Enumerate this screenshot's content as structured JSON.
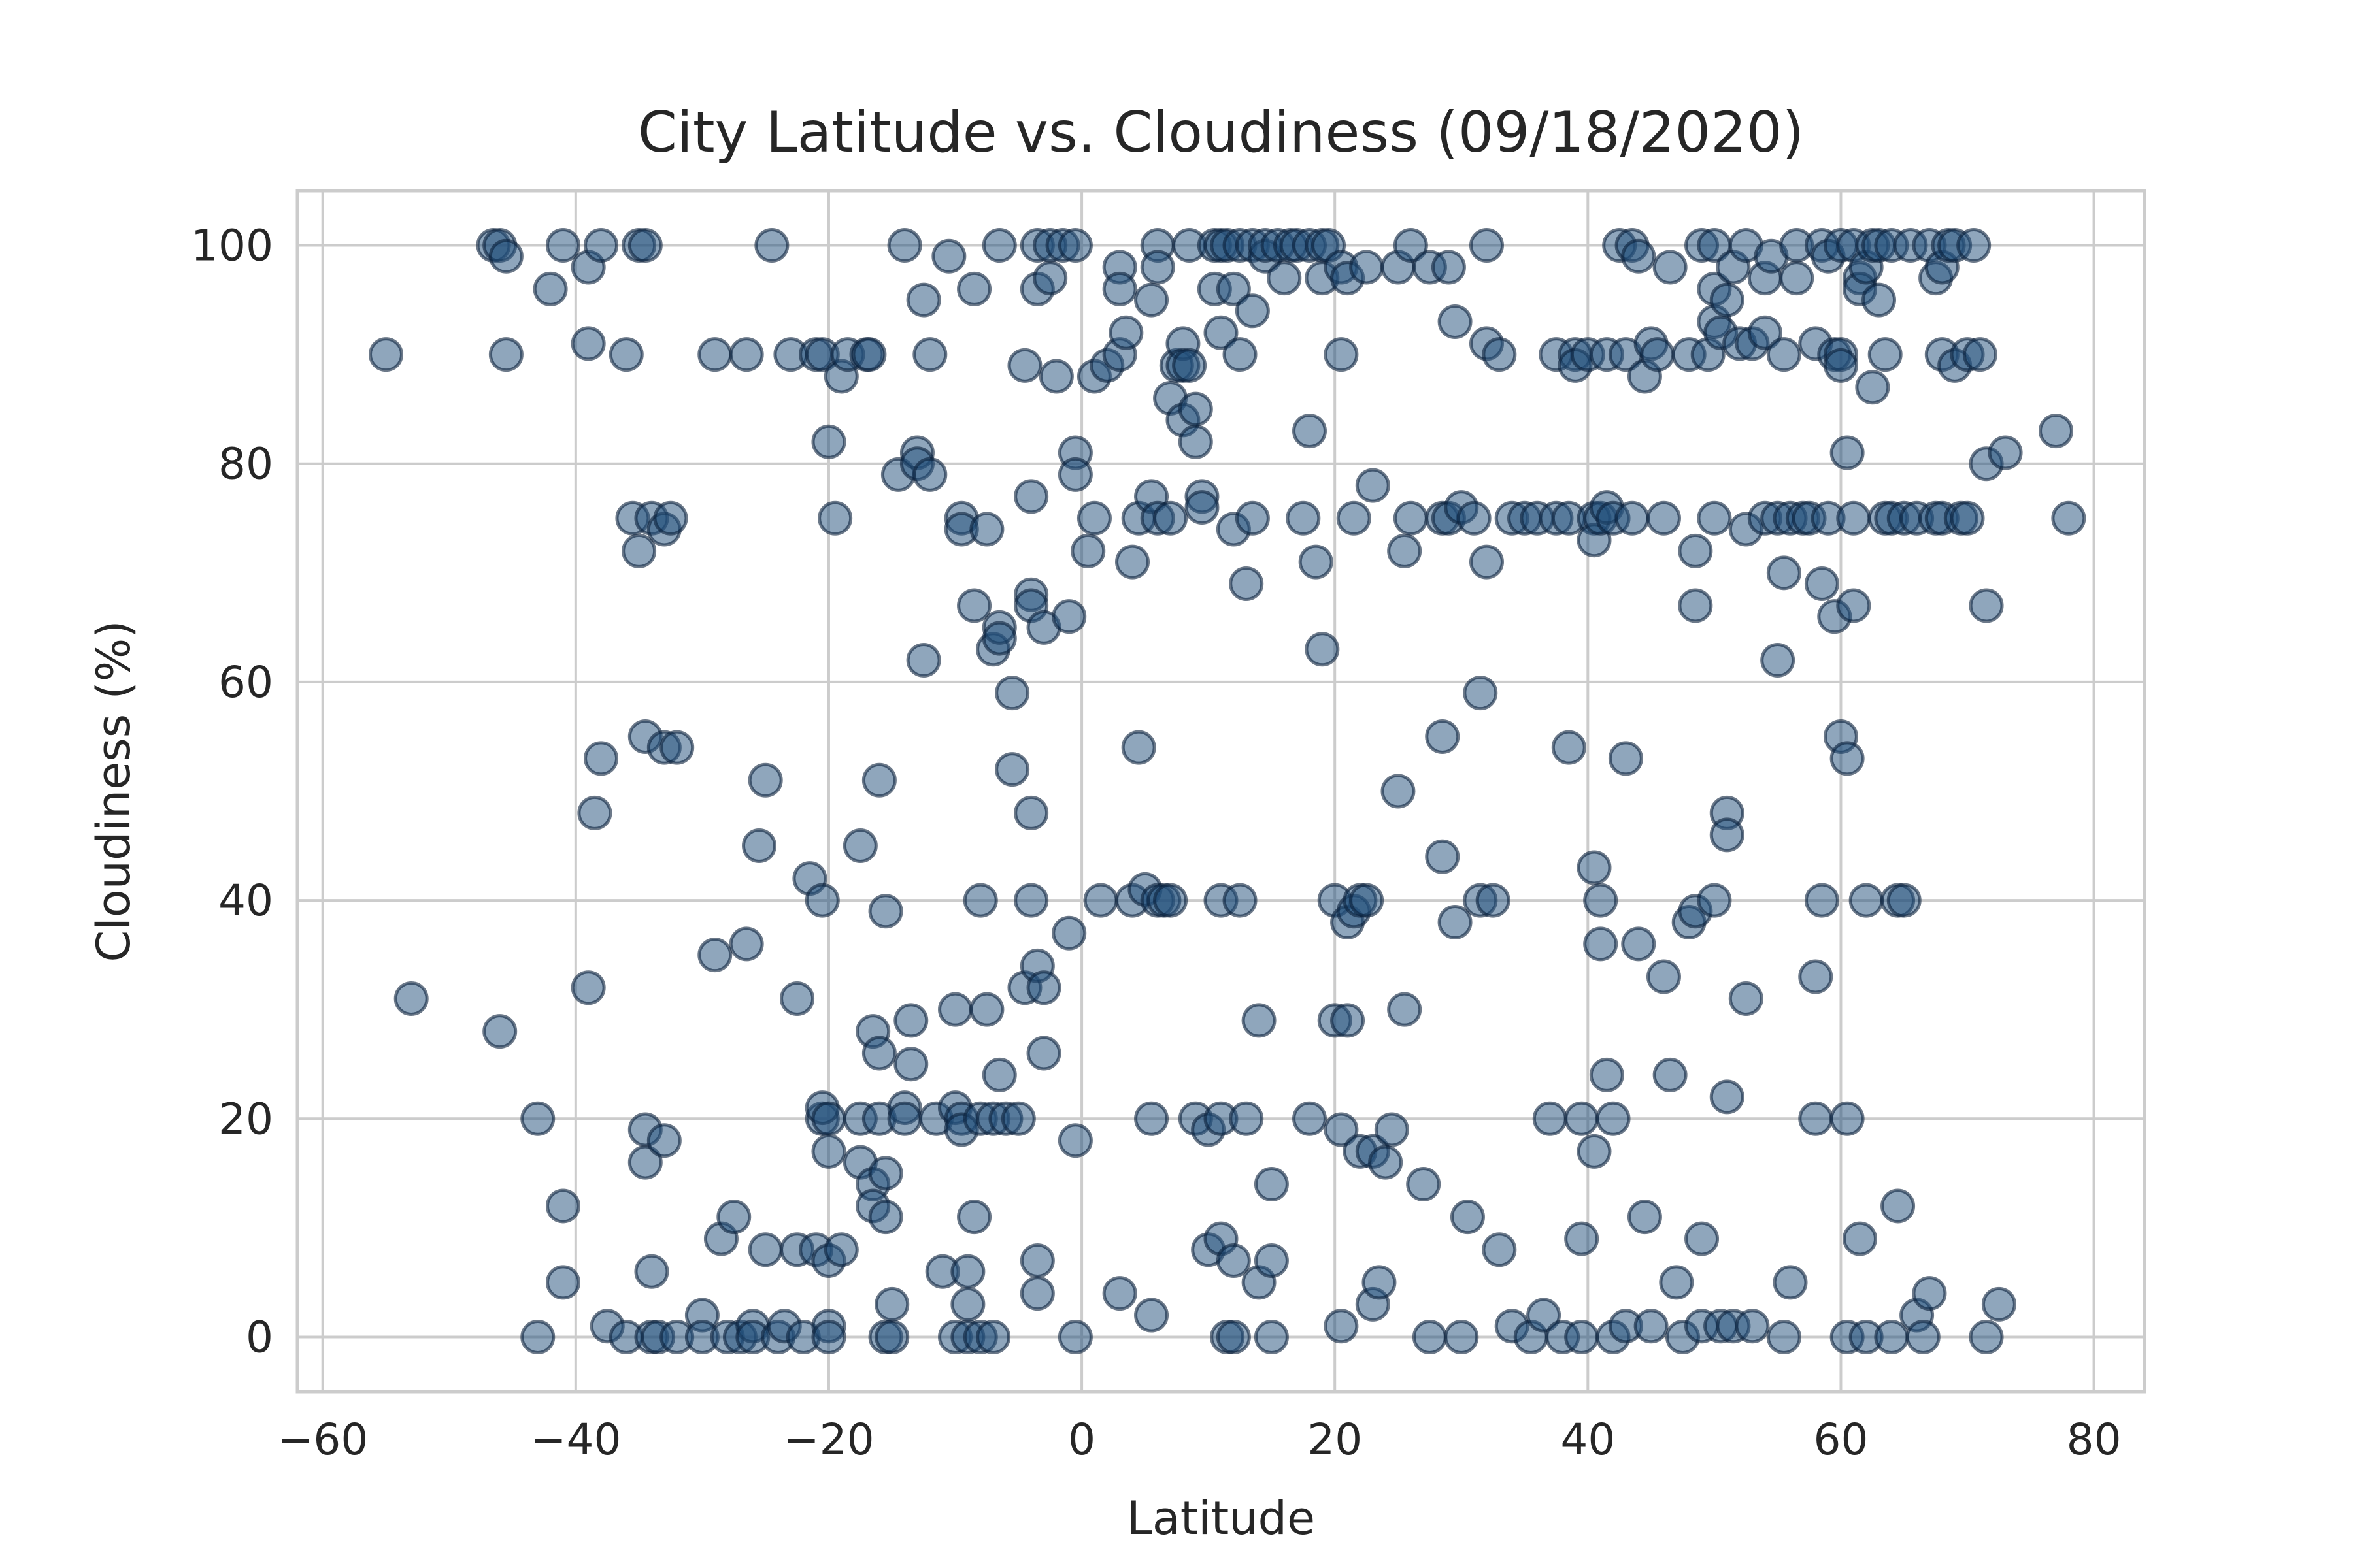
{
  "chart_data": {
    "type": "scatter",
    "title": "City Latitude vs. Cloudiness (09/18/2020)",
    "xlabel": "Latitude",
    "ylabel": "Cloudiness (%)",
    "xlim": [
      -62,
      84
    ],
    "ylim": [
      -5,
      105
    ],
    "xticks": [
      -60,
      -40,
      -20,
      0,
      20,
      40,
      60,
      80
    ],
    "xtick_labels": [
      "−60",
      "−40",
      "−20",
      "0",
      "20",
      "40",
      "60",
      "80"
    ],
    "yticks": [
      0,
      20,
      40,
      60,
      80,
      100
    ],
    "ytick_labels": [
      "0",
      "20",
      "40",
      "60",
      "80",
      "100"
    ],
    "grid": true,
    "legend": "none",
    "marker_fill": "#1f4e79",
    "marker_edge": "#0a1f3a",
    "marker_alpha": 0.5,
    "points": [
      [
        -55,
        90
      ],
      [
        -53,
        31
      ],
      [
        -46.5,
        100
      ],
      [
        -46,
        100
      ],
      [
        -45.5,
        99
      ],
      [
        -45.5,
        90
      ],
      [
        -46,
        28
      ],
      [
        -43,
        20
      ],
      [
        -43,
        0
      ],
      [
        -42,
        96
      ],
      [
        -41,
        100
      ],
      [
        -41,
        12
      ],
      [
        -41,
        5
      ],
      [
        -39,
        98
      ],
      [
        -39,
        91
      ],
      [
        -39,
        32
      ],
      [
        -38.5,
        48
      ],
      [
        -38,
        53
      ],
      [
        -38,
        100
      ],
      [
        -37.5,
        1
      ],
      [
        -36,
        90
      ],
      [
        -36,
        0
      ],
      [
        -35.5,
        75
      ],
      [
        -35,
        72
      ],
      [
        -35,
        100
      ],
      [
        -34.5,
        100
      ],
      [
        -34.5,
        55
      ],
      [
        -34.5,
        19
      ],
      [
        -34.5,
        16
      ],
      [
        -34,
        75
      ],
      [
        -34,
        6
      ],
      [
        -34,
        0
      ],
      [
        -33.5,
        0
      ],
      [
        -33,
        54
      ],
      [
        -33,
        74
      ],
      [
        -33,
        18
      ],
      [
        -32.5,
        75
      ],
      [
        -32,
        54
      ],
      [
        -32,
        0
      ],
      [
        -30,
        2
      ],
      [
        -30,
        0
      ],
      [
        -29,
        90
      ],
      [
        -29,
        35
      ],
      [
        -28.5,
        9
      ],
      [
        -28,
        0
      ],
      [
        -27.5,
        11
      ],
      [
        -27,
        0
      ],
      [
        -26.5,
        36
      ],
      [
        -26.5,
        90
      ],
      [
        -26,
        1
      ],
      [
        -26,
        0
      ],
      [
        -25.5,
        45
      ],
      [
        -25,
        51
      ],
      [
        -25,
        8
      ],
      [
        -24.5,
        100
      ],
      [
        -24,
        0
      ],
      [
        -23.5,
        1
      ],
      [
        -23,
        90
      ],
      [
        -22.5,
        8
      ],
      [
        -22.5,
        31
      ],
      [
        -22,
        0
      ],
      [
        -21.5,
        42
      ],
      [
        -21,
        8
      ],
      [
        -21,
        90
      ],
      [
        -20.5,
        90
      ],
      [
        -20.5,
        40
      ],
      [
        -20.5,
        20
      ],
      [
        -20.5,
        21
      ],
      [
        -20,
        82
      ],
      [
        -20,
        17
      ],
      [
        -20,
        20
      ],
      [
        -20,
        7
      ],
      [
        -20,
        1
      ],
      [
        -20,
        0
      ],
      [
        -19.5,
        75
      ],
      [
        -19,
        88
      ],
      [
        -19,
        8
      ],
      [
        -18.5,
        90
      ],
      [
        -17.5,
        16
      ],
      [
        -17.5,
        45
      ],
      [
        -17.5,
        20
      ],
      [
        -17,
        90
      ],
      [
        -16.8,
        90
      ],
      [
        -16.5,
        28
      ],
      [
        -16.5,
        14
      ],
      [
        -16.5,
        12
      ],
      [
        -16,
        26
      ],
      [
        -16,
        51
      ],
      [
        -16,
        20
      ],
      [
        -15.5,
        39
      ],
      [
        -15.5,
        15
      ],
      [
        -15.5,
        11
      ],
      [
        -15.5,
        0
      ],
      [
        -15,
        0
      ],
      [
        -15,
        3
      ],
      [
        -14.5,
        79
      ],
      [
        -14,
        100
      ],
      [
        -14,
        21
      ],
      [
        -14,
        20
      ],
      [
        -13.5,
        29
      ],
      [
        -13.5,
        25
      ],
      [
        -13,
        81
      ],
      [
        -13,
        80
      ],
      [
        -12.5,
        95
      ],
      [
        -12.5,
        62
      ],
      [
        -12,
        79
      ],
      [
        -12,
        90
      ],
      [
        -11.5,
        20
      ],
      [
        -11,
        6
      ],
      [
        -10.5,
        99
      ],
      [
        -10,
        0
      ],
      [
        -10,
        30
      ],
      [
        -10,
        21
      ],
      [
        -9.5,
        75
      ],
      [
        -9.5,
        74
      ],
      [
        -9.5,
        20
      ],
      [
        -9.5,
        19
      ],
      [
        -9,
        6
      ],
      [
        -9,
        3
      ],
      [
        -9,
        0
      ],
      [
        -8.5,
        96
      ],
      [
        -8.5,
        67
      ],
      [
        -8.5,
        11
      ],
      [
        -8,
        40
      ],
      [
        -8,
        20
      ],
      [
        -8,
        0
      ],
      [
        -7.5,
        74
      ],
      [
        -7.5,
        30
      ],
      [
        -7,
        63
      ],
      [
        -7,
        20
      ],
      [
        -7,
        0
      ],
      [
        -6.5,
        65
      ],
      [
        -6.5,
        64
      ],
      [
        -6.5,
        24
      ],
      [
        -6.5,
        100
      ],
      [
        -6,
        20
      ],
      [
        -5.5,
        59
      ],
      [
        -5.5,
        52
      ],
      [
        -5,
        20
      ],
      [
        -4.5,
        89
      ],
      [
        -4.5,
        32
      ],
      [
        -4,
        40
      ],
      [
        -4,
        68
      ],
      [
        -4,
        67
      ],
      [
        -4,
        48
      ],
      [
        -4,
        77
      ],
      [
        -3.5,
        100
      ],
      [
        -3.5,
        96
      ],
      [
        -3.5,
        34
      ],
      [
        -3.5,
        7
      ],
      [
        -3.5,
        4
      ],
      [
        -3,
        65
      ],
      [
        -3,
        32
      ],
      [
        -3,
        26
      ],
      [
        -2.5,
        97
      ],
      [
        -2.5,
        100
      ],
      [
        -2,
        88
      ],
      [
        -1.5,
        100
      ],
      [
        -1,
        66
      ],
      [
        -1,
        37
      ],
      [
        -0.5,
        81
      ],
      [
        -0.5,
        100
      ],
      [
        -0.5,
        79
      ],
      [
        -0.5,
        18
      ],
      [
        -0.5,
        0
      ],
      [
        0.5,
        72
      ],
      [
        1,
        88
      ],
      [
        1,
        75
      ],
      [
        1.5,
        40
      ],
      [
        2,
        89
      ],
      [
        3,
        90
      ],
      [
        3,
        98
      ],
      [
        3,
        96
      ],
      [
        3,
        4
      ],
      [
        3.5,
        92
      ],
      [
        4,
        71
      ],
      [
        4,
        40
      ],
      [
        4.5,
        54
      ],
      [
        4.5,
        75
      ],
      [
        5,
        41
      ],
      [
        5.5,
        77
      ],
      [
        5.5,
        95
      ],
      [
        5.5,
        20
      ],
      [
        5.5,
        2
      ],
      [
        6,
        100
      ],
      [
        6,
        75
      ],
      [
        6,
        98
      ],
      [
        6,
        40
      ],
      [
        6.5,
        40
      ],
      [
        7,
        40
      ],
      [
        7,
        75
      ],
      [
        7,
        86
      ],
      [
        7.5,
        89
      ],
      [
        8,
        91
      ],
      [
        8,
        84
      ],
      [
        8,
        89
      ],
      [
        8.5,
        89
      ],
      [
        8.5,
        100
      ],
      [
        9,
        82
      ],
      [
        9,
        85
      ],
      [
        9,
        20
      ],
      [
        9.5,
        77
      ],
      [
        9.5,
        76
      ],
      [
        10,
        19
      ],
      [
        10,
        8
      ],
      [
        10.5,
        100
      ],
      [
        10.5,
        96
      ],
      [
        11,
        100
      ],
      [
        11,
        92
      ],
      [
        11,
        40
      ],
      [
        11,
        20
      ],
      [
        11,
        9
      ],
      [
        11.5,
        100
      ],
      [
        11.5,
        0
      ],
      [
        12,
        7
      ],
      [
        12,
        96
      ],
      [
        12,
        74
      ],
      [
        12,
        0
      ],
      [
        12.5,
        40
      ],
      [
        12.5,
        90
      ],
      [
        12.5,
        100
      ],
      [
        13,
        69
      ],
      [
        13,
        20
      ],
      [
        13.5,
        100
      ],
      [
        13.5,
        75
      ],
      [
        13.5,
        94
      ],
      [
        14,
        29
      ],
      [
        14,
        5
      ],
      [
        14.5,
        99
      ],
      [
        14.5,
        100
      ],
      [
        15,
        14
      ],
      [
        15,
        7
      ],
      [
        15,
        0
      ],
      [
        15.5,
        100
      ],
      [
        16,
        97
      ],
      [
        16.5,
        100
      ],
      [
        17,
        100
      ],
      [
        17.5,
        75
      ],
      [
        18,
        100
      ],
      [
        18,
        20
      ],
      [
        18,
        83
      ],
      [
        18.5,
        71
      ],
      [
        19,
        97
      ],
      [
        19,
        63
      ],
      [
        19,
        100
      ],
      [
        19.5,
        100
      ],
      [
        20,
        40
      ],
      [
        20,
        29
      ],
      [
        20.5,
        98
      ],
      [
        20.5,
        19
      ],
      [
        20.5,
        90
      ],
      [
        20.5,
        1
      ],
      [
        21,
        38
      ],
      [
        21,
        29
      ],
      [
        21,
        97
      ],
      [
        21.5,
        75
      ],
      [
        21.5,
        39
      ],
      [
        22,
        17
      ],
      [
        22,
        40
      ],
      [
        22.5,
        98
      ],
      [
        22.5,
        40
      ],
      [
        23,
        78
      ],
      [
        23,
        3
      ],
      [
        23,
        17
      ],
      [
        23.5,
        5
      ],
      [
        24,
        16
      ],
      [
        24.5,
        19
      ],
      [
        25,
        50
      ],
      [
        25,
        98
      ],
      [
        25.5,
        72
      ],
      [
        25.5,
        30
      ],
      [
        26,
        100
      ],
      [
        26,
        75
      ],
      [
        27,
        14
      ],
      [
        27.5,
        98
      ],
      [
        27.5,
        0
      ],
      [
        28.5,
        75
      ],
      [
        28.5,
        55
      ],
      [
        28.5,
        44
      ],
      [
        29,
        98
      ],
      [
        29,
        75
      ],
      [
        29.5,
        93
      ],
      [
        29.5,
        38
      ],
      [
        30,
        0
      ],
      [
        30,
        76
      ],
      [
        30.5,
        11
      ],
      [
        31,
        75
      ],
      [
        31.5,
        59
      ],
      [
        31.5,
        40
      ],
      [
        32,
        91
      ],
      [
        32,
        71
      ],
      [
        32,
        100
      ],
      [
        32.5,
        40
      ],
      [
        33,
        90
      ],
      [
        33,
        8
      ],
      [
        34,
        75
      ],
      [
        34,
        1
      ],
      [
        35,
        75
      ],
      [
        35.5,
        0
      ],
      [
        36,
        75
      ],
      [
        36.5,
        2
      ],
      [
        37,
        20
      ],
      [
        37.5,
        90
      ],
      [
        37.5,
        75
      ],
      [
        38,
        0
      ],
      [
        38.5,
        54
      ],
      [
        38.5,
        75
      ],
      [
        39,
        90
      ],
      [
        39,
        89
      ],
      [
        39.5,
        9
      ],
      [
        39.5,
        20
      ],
      [
        39.5,
        0
      ],
      [
        40,
        90
      ],
      [
        40.5,
        75
      ],
      [
        40.5,
        73
      ],
      [
        40.5,
        43
      ],
      [
        40.5,
        17
      ],
      [
        41,
        36
      ],
      [
        41,
        40
      ],
      [
        41,
        75
      ],
      [
        41.5,
        90
      ],
      [
        41.5,
        76
      ],
      [
        41.5,
        24
      ],
      [
        42,
        20
      ],
      [
        42,
        75
      ],
      [
        42,
        0
      ],
      [
        42.5,
        100
      ],
      [
        43,
        90
      ],
      [
        43,
        53
      ],
      [
        43,
        1
      ],
      [
        43.5,
        100
      ],
      [
        43.5,
        75
      ],
      [
        44,
        99
      ],
      [
        44,
        36
      ],
      [
        44.5,
        11
      ],
      [
        44.5,
        88
      ],
      [
        45,
        91
      ],
      [
        45,
        1
      ],
      [
        45.5,
        90
      ],
      [
        46,
        75
      ],
      [
        46,
        33
      ],
      [
        46.5,
        98
      ],
      [
        46.5,
        24
      ],
      [
        47,
        5
      ],
      [
        47.5,
        0
      ],
      [
        48,
        90
      ],
      [
        48,
        38
      ],
      [
        48.5,
        39
      ],
      [
        48.5,
        72
      ],
      [
        48.5,
        67
      ],
      [
        49,
        100
      ],
      [
        49,
        9
      ],
      [
        49,
        1
      ],
      [
        49.5,
        90
      ],
      [
        50,
        100
      ],
      [
        50,
        96
      ],
      [
        50,
        93
      ],
      [
        50,
        40
      ],
      [
        50,
        75
      ],
      [
        50.5,
        92
      ],
      [
        50.5,
        1
      ],
      [
        51,
        95
      ],
      [
        51,
        48
      ],
      [
        51,
        46
      ],
      [
        51,
        22
      ],
      [
        51.5,
        98
      ],
      [
        51.5,
        1
      ],
      [
        52,
        91
      ],
      [
        52.5,
        74
      ],
      [
        52.5,
        31
      ],
      [
        52.5,
        100
      ],
      [
        53,
        91
      ],
      [
        53,
        1
      ],
      [
        54,
        97
      ],
      [
        54,
        92
      ],
      [
        54,
        75
      ],
      [
        54.5,
        99
      ],
      [
        55,
        75
      ],
      [
        55,
        62
      ],
      [
        55.5,
        90
      ],
      [
        55.5,
        70
      ],
      [
        55.5,
        0
      ],
      [
        56,
        75
      ],
      [
        56,
        5
      ],
      [
        56.5,
        97
      ],
      [
        56.5,
        100
      ],
      [
        57,
        75
      ],
      [
        57.5,
        75
      ],
      [
        58,
        33
      ],
      [
        58,
        20
      ],
      [
        58,
        91
      ],
      [
        58.5,
        100
      ],
      [
        58.5,
        40
      ],
      [
        58.5,
        69
      ],
      [
        59,
        99
      ],
      [
        59,
        75
      ],
      [
        59.5,
        66
      ],
      [
        59.5,
        90
      ],
      [
        60,
        100
      ],
      [
        60,
        90
      ],
      [
        60,
        89
      ],
      [
        60,
        55
      ],
      [
        60.5,
        81
      ],
      [
        60.5,
        53
      ],
      [
        60.5,
        20
      ],
      [
        60.5,
        0
      ],
      [
        61,
        100
      ],
      [
        61,
        75
      ],
      [
        61,
        67
      ],
      [
        61.5,
        97
      ],
      [
        61.5,
        96
      ],
      [
        61.5,
        9
      ],
      [
        62,
        98
      ],
      [
        62,
        40
      ],
      [
        62,
        0
      ],
      [
        62.5,
        87
      ],
      [
        62.5,
        100
      ],
      [
        63,
        95
      ],
      [
        63,
        100
      ],
      [
        63.5,
        90
      ],
      [
        63.5,
        75
      ],
      [
        64,
        100
      ],
      [
        64,
        75
      ],
      [
        64,
        0
      ],
      [
        64.5,
        12
      ],
      [
        64.5,
        40
      ],
      [
        65,
        75
      ],
      [
        65,
        40
      ],
      [
        65.5,
        100
      ],
      [
        66,
        2
      ],
      [
        66,
        75
      ],
      [
        66.5,
        0
      ],
      [
        67,
        100
      ],
      [
        67,
        4
      ],
      [
        67.5,
        97
      ],
      [
        67.5,
        75
      ],
      [
        68,
        90
      ],
      [
        68,
        98
      ],
      [
        68,
        75
      ],
      [
        68.5,
        100
      ],
      [
        69,
        100
      ],
      [
        69,
        89
      ],
      [
        69.5,
        75
      ],
      [
        70,
        90
      ],
      [
        70,
        75
      ],
      [
        70.5,
        100
      ],
      [
        71,
        90
      ],
      [
        71.5,
        67
      ],
      [
        71.5,
        80
      ],
      [
        71.5,
        0
      ],
      [
        72.5,
        3
      ],
      [
        73,
        81
      ],
      [
        77,
        83
      ],
      [
        78,
        75
      ]
    ]
  }
}
